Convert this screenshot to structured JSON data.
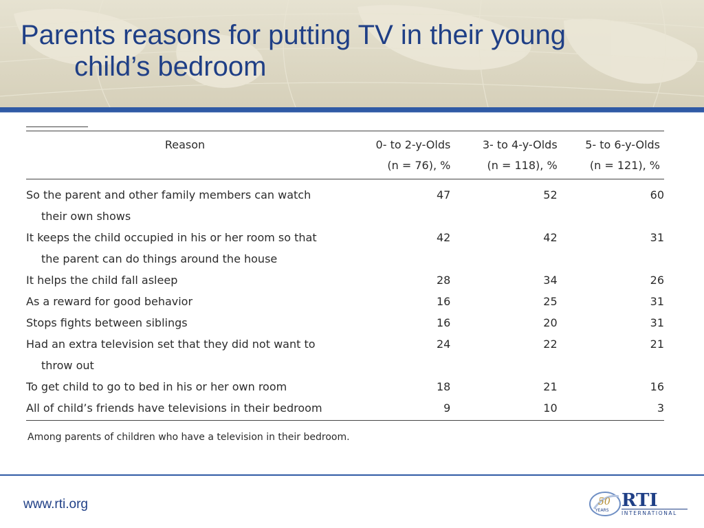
{
  "slide": {
    "title_line1": "Parents reasons for putting TV in their young",
    "title_line2": "child’s bedroom"
  },
  "table": {
    "headers": {
      "reason": "Reason",
      "col1_line1": "0- to 2-y-Olds",
      "col1_line2": "(n = 76), %",
      "col2_line1": "3- to 4-y-Olds",
      "col2_line2": "(n = 118), %",
      "col3_line1": "5- to 6-y-Olds",
      "col3_line2": "(n = 121), %"
    },
    "rows": [
      {
        "reason_line1": "So the parent and other family members can watch",
        "reason_line2": "their own shows",
        "v1": "47",
        "v2": "52",
        "v3": "60"
      },
      {
        "reason_line1": "It keeps the child occupied in his or her room so that",
        "reason_line2": "the parent can do things around the house",
        "v1": "42",
        "v2": "42",
        "v3": "31"
      },
      {
        "reason_line1": "It helps the child fall asleep",
        "reason_line2": "",
        "v1": "28",
        "v2": "34",
        "v3": "26"
      },
      {
        "reason_line1": "As a reward for good behavior",
        "reason_line2": "",
        "v1": "16",
        "v2": "25",
        "v3": "31"
      },
      {
        "reason_line1": "Stops fights between siblings",
        "reason_line2": "",
        "v1": "16",
        "v2": "20",
        "v3": "31"
      },
      {
        "reason_line1": "Had an extra television set that they did not want to",
        "reason_line2": "throw out",
        "v1": "24",
        "v2": "22",
        "v3": "21"
      },
      {
        "reason_line1": "To get child to go to bed in his or her own room",
        "reason_line2": "",
        "v1": "18",
        "v2": "21",
        "v3": "16"
      },
      {
        "reason_line1": "All of child’s friends have televisions in their bedroom",
        "reason_line2": "",
        "v1": "9",
        "v2": "10",
        "v3": "3"
      }
    ],
    "footnote": "Among parents of children who have a television in their bedroom."
  },
  "footer": {
    "url": "www.rti.org",
    "logo_years_number": "50",
    "logo_years_word": "YEARS",
    "logo_name": "RTI",
    "logo_subtitle": "INTERNATIONAL"
  },
  "colors": {
    "title_blue": "#1f3f86",
    "rule_blue": "#2f5aa5",
    "header_bg": "#ddd8c4",
    "text": "#2b2b2b"
  }
}
